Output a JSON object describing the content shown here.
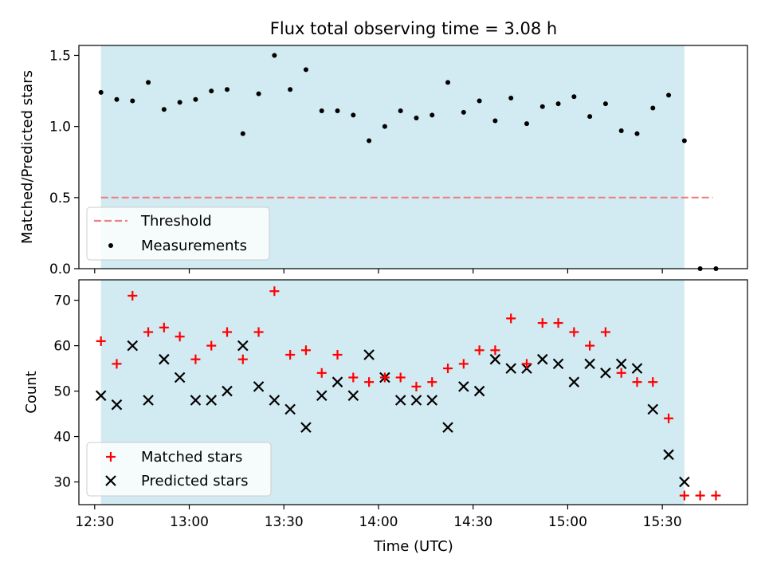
{
  "title": "Flux total observing time = 3.08 h",
  "colors": {
    "band": "#add8e6",
    "threshold": "#f08080",
    "measurement": "#000000",
    "matched": "#ff0000",
    "predicted": "#000000"
  },
  "chart_data": [
    {
      "type": "scatter",
      "title": "Flux total observing time = 3.08 h",
      "xlabel": "",
      "ylabel": "Matched/Predicted stars",
      "xlim": [
        "12:25",
        "15:57"
      ],
      "ylim": [
        0,
        1.57
      ],
      "yticks": [
        "0.0",
        "0.5",
        "1.0",
        "1.5"
      ],
      "grid": false,
      "legend_position": "lower-left",
      "observing_window": [
        "12:32",
        "15:37"
      ],
      "threshold": {
        "name": "Threshold",
        "value": 0.5,
        "x_range": [
          "12:32",
          "15:46"
        ]
      },
      "series": [
        {
          "name": "Measurements",
          "x": [
            "12:32",
            "12:37",
            "12:42",
            "12:47",
            "12:52",
            "12:57",
            "13:02",
            "13:07",
            "13:12",
            "13:17",
            "13:22",
            "13:27",
            "13:32",
            "13:37",
            "13:42",
            "13:47",
            "13:52",
            "13:57",
            "14:02",
            "14:07",
            "14:12",
            "14:17",
            "14:22",
            "14:27",
            "14:32",
            "14:37",
            "14:42",
            "14:47",
            "14:52",
            "14:57",
            "15:02",
            "15:07",
            "15:12",
            "15:17",
            "15:22",
            "15:27",
            "15:32",
            "15:37",
            "15:42",
            "15:47"
          ],
          "y": [
            1.24,
            1.19,
            1.18,
            1.31,
            1.12,
            1.17,
            1.19,
            1.25,
            1.26,
            0.95,
            1.23,
            1.5,
            1.26,
            1.4,
            1.11,
            1.11,
            1.08,
            0.9,
            1.0,
            1.11,
            1.06,
            1.08,
            1.31,
            1.1,
            1.18,
            1.04,
            1.2,
            1.02,
            1.14,
            1.16,
            1.21,
            1.07,
            1.16,
            0.97,
            0.95,
            1.13,
            1.22,
            0.9,
            0.0,
            0.0
          ]
        }
      ]
    },
    {
      "type": "scatter",
      "title": "",
      "xlabel": "Time (UTC)",
      "ylabel": "Count",
      "xlim": [
        "12:25",
        "15:57"
      ],
      "ylim": [
        25,
        74.5
      ],
      "yticks": [
        "30",
        "40",
        "50",
        "60",
        "70"
      ],
      "xticks": [
        "12:30",
        "13:00",
        "13:30",
        "14:00",
        "14:30",
        "15:00",
        "15:30"
      ],
      "grid": false,
      "legend_position": "lower-left",
      "observing_window": [
        "12:32",
        "15:37"
      ],
      "x": [
        "12:32",
        "12:37",
        "12:42",
        "12:47",
        "12:52",
        "12:57",
        "13:02",
        "13:07",
        "13:12",
        "13:17",
        "13:22",
        "13:27",
        "13:32",
        "13:37",
        "13:42",
        "13:47",
        "13:52",
        "13:57",
        "14:02",
        "14:07",
        "14:12",
        "14:17",
        "14:22",
        "14:27",
        "14:32",
        "14:37",
        "14:42",
        "14:47",
        "14:52",
        "14:57",
        "15:02",
        "15:07",
        "15:12",
        "15:17",
        "15:22",
        "15:27",
        "15:32",
        "15:37",
        "15:42",
        "15:47"
      ],
      "series": [
        {
          "name": "Matched stars",
          "marker": "plus",
          "y": [
            61,
            56,
            71,
            63,
            64,
            62,
            57,
            60,
            63,
            57,
            63,
            72,
            58,
            59,
            54,
            58,
            53,
            52,
            53,
            53,
            51,
            52,
            55,
            56,
            59,
            59,
            66,
            56,
            65,
            65,
            63,
            60,
            63,
            54,
            52,
            52,
            44,
            27,
            27,
            27
          ]
        },
        {
          "name": "Predicted stars",
          "marker": "x",
          "y": [
            49,
            47,
            60,
            48,
            57,
            53,
            48,
            48,
            50,
            60,
            51,
            48,
            46,
            42,
            49,
            52,
            49,
            58,
            53,
            48,
            48,
            48,
            42,
            51,
            50,
            57,
            55,
            55,
            57,
            56,
            52,
            56,
            54,
            56,
            55,
            46,
            36,
            30,
            null,
            null
          ]
        }
      ]
    }
  ]
}
